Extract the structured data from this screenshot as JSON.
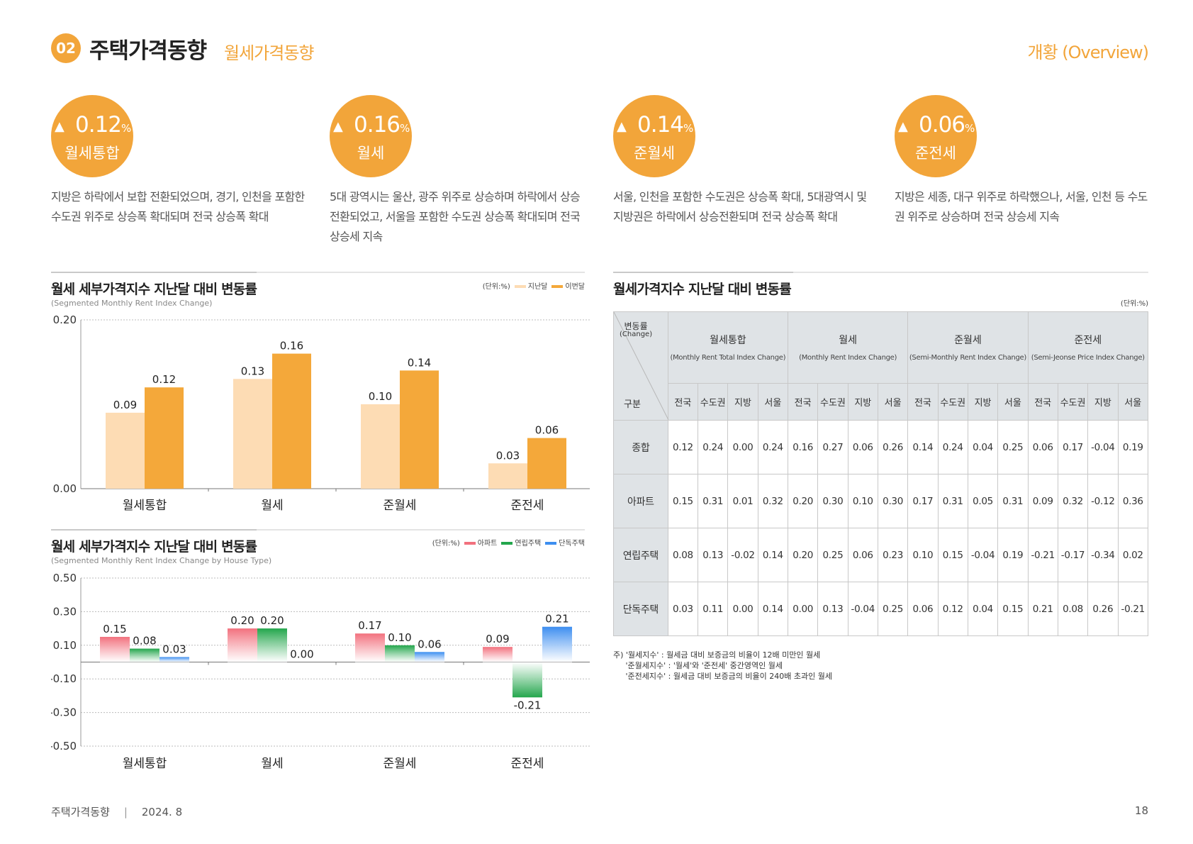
{
  "header": {
    "section_number": "02",
    "title": "주택가격동향",
    "subtitle": "월세가격동향",
    "right_label": "개황 (Overview)"
  },
  "stats": [
    {
      "arrow": "▲",
      "value": "0.12",
      "unit": "%",
      "label": "월세통합",
      "desc": "지방은 하락에서 보합 전환되었으며, 경기, 인천을 포함한 수도권 위주로 상승폭 확대되며 전국 상승폭 확대"
    },
    {
      "arrow": "▲",
      "value": "0.16",
      "unit": "%",
      "label": "월세",
      "desc": "5대 광역시는 울산, 광주 위주로 상승하며 하락에서 상승 전환되었고, 서울을 포함한 수도권 상승폭 확대되며 전국 상승세 지속"
    },
    {
      "arrow": "▲",
      "value": "0.14",
      "unit": "%",
      "label": "준월세",
      "desc": "서울, 인천을 포함한 수도권은 상승폭 확대, 5대광역시 및 지방권은 하락에서 상승전환되며 전국 상승폭 확대"
    },
    {
      "arrow": "▲",
      "value": "0.06",
      "unit": "%",
      "label": "준전세",
      "desc": "지방은 세종, 대구 위주로 하락했으나, 서울, 인천 등 수도권 위주로 상승하며 전국 상승세 지속"
    }
  ],
  "chart1_head": {
    "title": "월세 세부가격지수 지난달 대비 변동률",
    "subtitle_en": "(Segmented Monthly Rent Index Change)",
    "unit": "(단위:%)"
  },
  "chart2_head": {
    "title": "월세 세부가격지수 지난달 대비 변동률",
    "subtitle_en": "(Segmented Monthly Rent Index Change by House Type)",
    "unit": "(단위:%)"
  },
  "chart_data": [
    {
      "type": "bar",
      "title": "월세 세부가격지수 지난달 대비 변동률",
      "categories": [
        "월세통합",
        "월세",
        "준월세",
        "준전세"
      ],
      "series": [
        {
          "name": "지난달",
          "color": "#fddcb4",
          "values": [
            0.09,
            0.13,
            0.1,
            0.03
          ]
        },
        {
          "name": "이번달",
          "color": "#f4a83a",
          "values": [
            0.12,
            0.16,
            0.14,
            0.06
          ]
        }
      ],
      "ylim": [
        0,
        0.2
      ],
      "yticks": [
        "0.00",
        "0.20"
      ],
      "legend": "top-right"
    },
    {
      "type": "bar",
      "title": "월세 세부가격지수 지난달 대비 변동률",
      "categories": [
        "월세통합",
        "월세",
        "준월세",
        "준전세"
      ],
      "series": [
        {
          "name": "아파트",
          "color": "#f2717e",
          "values": [
            0.15,
            0.2,
            0.17,
            0.09
          ]
        },
        {
          "name": "연립주택",
          "color": "#23a64c",
          "values": [
            0.08,
            0.2,
            0.1,
            -0.21
          ]
        },
        {
          "name": "단독주택",
          "color": "#3d8ef0",
          "values": [
            0.03,
            0.0,
            0.06,
            0.21
          ]
        }
      ],
      "ylim": [
        -0.5,
        0.5
      ],
      "yticks": [
        "0.50",
        "0.30",
        "0.10",
        "-0.10",
        "-0.30",
        "-0.50"
      ],
      "legend": "top-right"
    }
  ],
  "table": {
    "title": "월세가격지수 지난달 대비 변동률",
    "unit": "(단위:%)",
    "corner_top": "변동률",
    "corner_top_en": "(Change)",
    "corner_bottom": "구분",
    "groups": [
      {
        "name": "월세통합",
        "en": "(Monthly Rent Total Index Change)"
      },
      {
        "name": "월세",
        "en": "(Monthly Rent Index Change)"
      },
      {
        "name": "준월세",
        "en": "(Semi-Monthly Rent Index Change)"
      },
      {
        "name": "준전세",
        "en": "(Semi-Jeonse Price Index Change)"
      }
    ],
    "subcols": [
      "전국",
      "수도권",
      "지방",
      "서울"
    ],
    "rows": [
      {
        "label": "종합",
        "values": [
          "0.12",
          "0.24",
          "0.00",
          "0.24",
          "0.16",
          "0.27",
          "0.06",
          "0.26",
          "0.14",
          "0.24",
          "0.04",
          "0.25",
          "0.06",
          "0.17",
          "-0.04",
          "0.19"
        ]
      },
      {
        "label": "아파트",
        "values": [
          "0.15",
          "0.31",
          "0.01",
          "0.32",
          "0.20",
          "0.30",
          "0.10",
          "0.30",
          "0.17",
          "0.31",
          "0.05",
          "0.31",
          "0.09",
          "0.32",
          "-0.12",
          "0.36"
        ]
      },
      {
        "label": "연립주택",
        "values": [
          "0.08",
          "0.13",
          "-0.02",
          "0.14",
          "0.20",
          "0.25",
          "0.06",
          "0.23",
          "0.10",
          "0.15",
          "-0.04",
          "0.19",
          "-0.21",
          "-0.17",
          "-0.34",
          "0.02"
        ]
      },
      {
        "label": "단독주택",
        "values": [
          "0.03",
          "0.11",
          "0.00",
          "0.14",
          "0.00",
          "0.13",
          "-0.04",
          "0.25",
          "0.06",
          "0.12",
          "0.04",
          "0.15",
          "0.21",
          "0.08",
          "0.26",
          "-0.21"
        ]
      }
    ],
    "notes": [
      "주) '월세지수' : 월세금 대비 보증금의 비율이 12배 미만인 월세",
      "     '준월세지수' : '월세'와 '준전세' 중간영역인 월세",
      "     '준전세지수' : 월세금 대비 보증금의 비율이 240배 초과인 월세"
    ]
  },
  "footer": {
    "publication": "주택가격동향",
    "separator": "|",
    "date": "2024. 8",
    "page": "18"
  }
}
